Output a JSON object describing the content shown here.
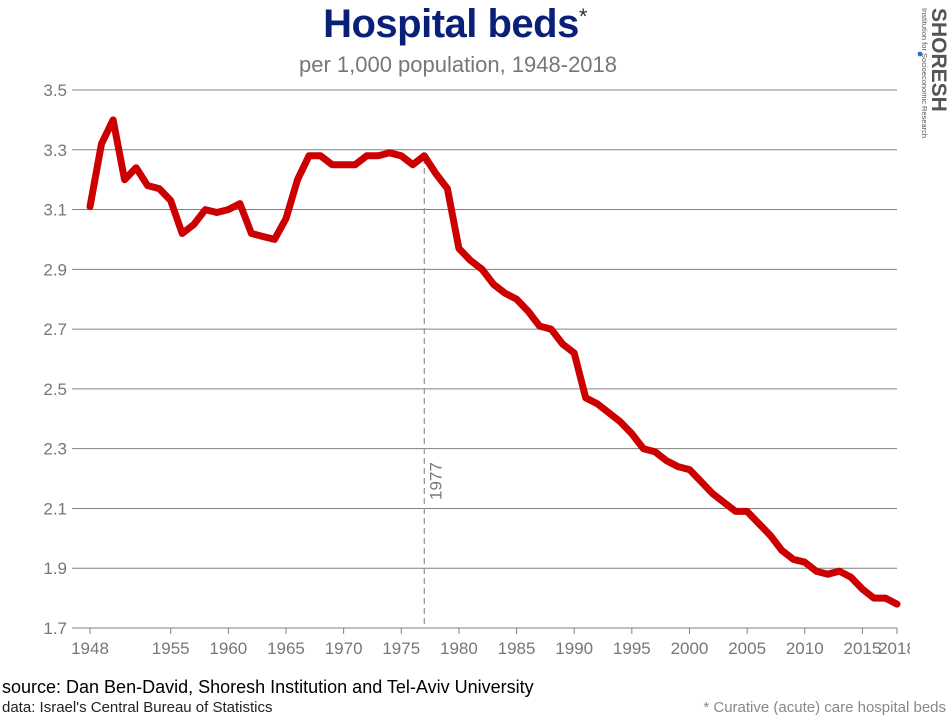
{
  "title": "Hospital beds",
  "title_mark": "*",
  "subtitle": "per 1,000 population, 1948-2018",
  "logo": {
    "name": "SHORESH",
    "tagline": "Institution for Socioeconomic Research"
  },
  "source": "source: Dan Ben-David, Shoresh Institution and Tel-Aviv University",
  "data_credit": "data: Israel's Central Bureau of Statistics",
  "footnote": "* Curative (acute) care hospital beds",
  "colors": {
    "line": "#cc0000",
    "title": "#0a1f7a",
    "grid": "#808080",
    "axis_text": "#777777"
  },
  "chart_data": {
    "type": "line",
    "title": "Hospital beds",
    "subtitle": "per 1,000 population, 1948-2018",
    "ylim": [
      1.7,
      3.5
    ],
    "yticks": [
      "3.5",
      "3.3",
      "3.1",
      "2.9",
      "2.7",
      "2.5",
      "2.3",
      "2.1",
      "1.9",
      "1.7"
    ],
    "xlim": [
      1948,
      2018
    ],
    "xticks": [
      "1948",
      "1955",
      "1960",
      "1965",
      "1970",
      "1975",
      "1980",
      "1985",
      "1990",
      "1995",
      "2000",
      "2005",
      "2010",
      "2015",
      "2018"
    ],
    "grid": "horizontal",
    "annotation": {
      "x": 1977,
      "label": "1977",
      "style": "dashed vertical line"
    },
    "series": [
      {
        "x": [
          1948,
          1949,
          1950,
          1951,
          1952,
          1953,
          1954,
          1955,
          1956,
          1957,
          1958,
          1959,
          1960,
          1961,
          1962,
          1963,
          1964,
          1965,
          1966,
          1967,
          1968,
          1969,
          1970,
          1971,
          1972,
          1973,
          1974,
          1975,
          1976,
          1977,
          1978,
          1979,
          1980,
          1981,
          1982,
          1983,
          1984,
          1985,
          1986,
          1987,
          1988,
          1989,
          1990,
          1991,
          1992,
          1993,
          1994,
          1995,
          1996,
          1997,
          1998,
          1999,
          2000,
          2001,
          2002,
          2003,
          2004,
          2005,
          2006,
          2007,
          2008,
          2009,
          2010,
          2011,
          2012,
          2013,
          2014,
          2015,
          2016,
          2017,
          2018
        ],
        "values": [
          3.11,
          3.32,
          3.4,
          3.2,
          3.24,
          3.18,
          3.17,
          3.13,
          3.02,
          3.05,
          3.1,
          3.09,
          3.1,
          3.12,
          3.02,
          3.01,
          3.0,
          3.07,
          3.2,
          3.28,
          3.28,
          3.25,
          3.25,
          3.25,
          3.28,
          3.28,
          3.29,
          3.28,
          3.25,
          3.28,
          3.22,
          3.17,
          2.97,
          2.93,
          2.9,
          2.85,
          2.82,
          2.8,
          2.76,
          2.71,
          2.7,
          2.65,
          2.62,
          2.47,
          2.45,
          2.42,
          2.39,
          2.35,
          2.3,
          2.29,
          2.26,
          2.24,
          2.23,
          2.19,
          2.15,
          2.12,
          2.09,
          2.09,
          2.05,
          2.01,
          1.96,
          1.93,
          1.92,
          1.89,
          1.88,
          1.89,
          1.87,
          1.83,
          1.8,
          1.8,
          1.78
        ]
      }
    ]
  }
}
